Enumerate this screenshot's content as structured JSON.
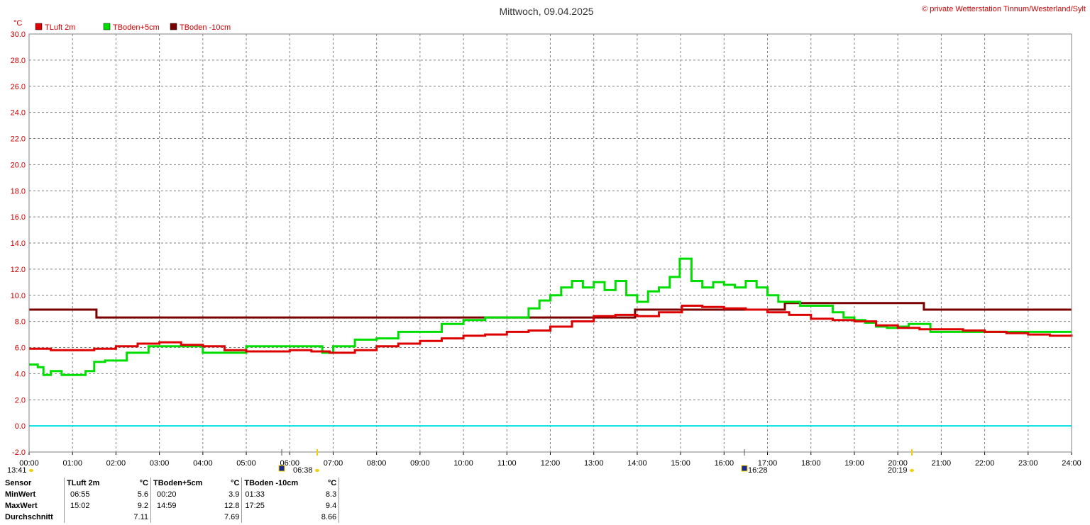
{
  "header": {
    "title": "Mittwoch, 09.04.2025",
    "copyright": "© private Wetterstation Tinnum/Westerland/Sylt",
    "unit": "°C"
  },
  "legend": [
    {
      "label": "TLuft 2m",
      "color": "#dd0000"
    },
    {
      "label": "TBoden+5cm",
      "color": "#00dd00"
    },
    {
      "label": "TBoden -10cm",
      "color": "#7a0000"
    }
  ],
  "sun": {
    "moon_rise": "13:41",
    "sunrise": "06:38",
    "sunset": "20:19",
    "moon_set": "16:28"
  },
  "chart_data": {
    "type": "line",
    "title": "Mittwoch, 09.04.2025",
    "ylabel": "°C",
    "ylim": [
      -2,
      30
    ],
    "yticks": [
      "-2.0",
      "0.0",
      "2.0",
      "4.0",
      "6.0",
      "8.0",
      "10.0",
      "12.0",
      "14.0",
      "16.0",
      "18.0",
      "20.0",
      "22.0",
      "24.0",
      "26.0",
      "28.0",
      "30.0"
    ],
    "xlim": [
      0,
      24
    ],
    "xticks": [
      "00:00",
      "01:00",
      "02:00",
      "03:00",
      "04:00",
      "05:00",
      "06:00",
      "07:00",
      "08:00",
      "09:00",
      "10:00",
      "11:00",
      "12:00",
      "13:00",
      "14:00",
      "15:00",
      "16:00",
      "17:00",
      "18:00",
      "19:00",
      "20:00",
      "21:00",
      "22:00",
      "23:00",
      "24:00"
    ],
    "grid": true,
    "legend_position": "top-left",
    "zero_line_color": "#00e0e0",
    "series": [
      {
        "name": "TLuft 2m",
        "color": "#dd0000",
        "x": [
          0,
          0.5,
          1,
          1.5,
          2,
          2.5,
          3,
          3.5,
          4,
          4.5,
          5,
          5.5,
          6,
          6.5,
          6.92,
          7.5,
          8,
          8.5,
          9,
          9.5,
          10,
          10.5,
          11,
          11.5,
          12,
          12.5,
          13,
          13.5,
          14,
          14.5,
          15.03,
          15.5,
          16,
          16.5,
          17,
          17.5,
          18,
          18.5,
          19,
          19.5,
          20,
          20.5,
          21,
          21.5,
          22,
          22.5,
          23,
          23.5,
          24
        ],
        "values": [
          5.9,
          5.8,
          5.8,
          5.9,
          6.1,
          6.3,
          6.4,
          6.2,
          6.1,
          5.8,
          5.7,
          5.7,
          5.8,
          5.7,
          5.6,
          5.8,
          6.1,
          6.3,
          6.5,
          6.7,
          6.9,
          7.0,
          7.2,
          7.3,
          7.6,
          8.0,
          8.4,
          8.5,
          8.4,
          8.7,
          9.2,
          9.1,
          9.0,
          8.9,
          8.7,
          8.5,
          8.2,
          8.1,
          8.0,
          7.7,
          7.5,
          7.4,
          7.4,
          7.3,
          7.2,
          7.1,
          7.0,
          6.9,
          7.0
        ]
      },
      {
        "name": "TBoden+5cm",
        "color": "#00dd00",
        "x": [
          0,
          0.2,
          0.33,
          0.5,
          0.75,
          1,
          1.3,
          1.5,
          1.75,
          2,
          2.25,
          2.5,
          2.75,
          3,
          3.5,
          4,
          4.5,
          5,
          5.5,
          6,
          6.5,
          6.75,
          7,
          7.5,
          8,
          8.5,
          9,
          9.5,
          10,
          10.5,
          11,
          11.5,
          11.75,
          12,
          12.25,
          12.5,
          12.75,
          13,
          13.25,
          13.5,
          13.75,
          14,
          14.25,
          14.5,
          14.75,
          14.98,
          15.25,
          15.5,
          15.75,
          16,
          16.25,
          16.5,
          16.75,
          17,
          17.25,
          17.5,
          17.75,
          18,
          18.25,
          18.5,
          18.75,
          19,
          19.25,
          19.5,
          19.75,
          20,
          20.25,
          20.5,
          20.75,
          21,
          21.5,
          22,
          22.5,
          23,
          23.5,
          24
        ],
        "values": [
          4.7,
          4.5,
          3.9,
          4.2,
          3.9,
          3.9,
          4.2,
          4.9,
          5.0,
          5.0,
          5.6,
          5.6,
          6.1,
          6.1,
          6.1,
          5.6,
          5.6,
          6.1,
          6.1,
          6.1,
          6.1,
          5.6,
          6.1,
          6.6,
          6.7,
          7.2,
          7.2,
          7.8,
          8.1,
          8.3,
          8.3,
          9.0,
          9.6,
          10.0,
          10.6,
          11.1,
          10.6,
          11.0,
          10.4,
          11.1,
          10.0,
          9.5,
          10.3,
          10.6,
          11.4,
          12.8,
          11.1,
          10.6,
          11.0,
          10.8,
          10.6,
          11.1,
          10.6,
          10.0,
          9.5,
          9.5,
          9.2,
          9.2,
          9.2,
          8.7,
          8.3,
          8.1,
          7.9,
          7.6,
          7.5,
          7.6,
          7.8,
          7.8,
          7.2,
          7.2,
          7.2,
          7.2,
          7.2,
          7.2,
          7.2,
          7.2
        ]
      },
      {
        "name": "TBoden -10cm",
        "color": "#7a0000",
        "x": [
          0,
          1.55,
          1.55,
          13.95,
          13.95,
          17.4,
          17.4,
          20.6,
          20.6,
          24
        ],
        "values": [
          8.9,
          8.9,
          8.3,
          8.3,
          8.9,
          8.9,
          9.4,
          9.4,
          8.9,
          8.9
        ]
      }
    ]
  },
  "stats": {
    "header": {
      "sensor": "Sensor",
      "s1_name": "TLuft 2m",
      "s1_unit": "°C",
      "s2_name": "TBoden+5cm",
      "s2_unit": "°C",
      "s3_name": "TBoden -10cm",
      "s3_unit": "°C"
    },
    "rows": [
      {
        "label": "MinWert",
        "s1_time": "06:55",
        "s1_val": "5.6",
        "s2_time": "00:20",
        "s2_val": "3.9",
        "s3_time": "01:33",
        "s3_val": "8.3"
      },
      {
        "label": "MaxWert",
        "s1_time": "15:02",
        "s1_val": "9.2",
        "s2_time": "14:59",
        "s2_val": "12.8",
        "s3_time": "17:25",
        "s3_val": "9.4"
      },
      {
        "label": "Durchschnitt",
        "s1_time": "",
        "s1_val": "7.11",
        "s2_time": "",
        "s2_val": "7.69",
        "s3_time": "",
        "s3_val": "8.66"
      }
    ]
  }
}
